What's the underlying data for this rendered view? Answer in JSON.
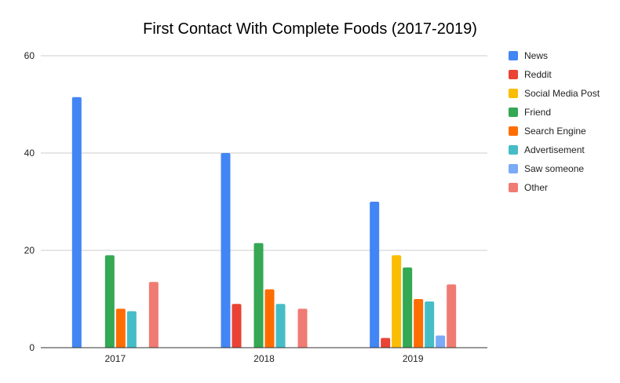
{
  "chart_data": {
    "type": "bar",
    "title": "First Contact With Complete Foods (2017-2019)",
    "xlabel": "",
    "ylabel": "",
    "categories": [
      "2017",
      "2018",
      "2019"
    ],
    "ylim": [
      0,
      60
    ],
    "yticks": [
      0,
      20,
      40,
      60
    ],
    "grid": true,
    "legend_position": "right",
    "series": [
      {
        "name": "News",
        "color": "#4285F4",
        "values": [
          51.5,
          40,
          30
        ]
      },
      {
        "name": "Reddit",
        "color": "#EA4335",
        "values": [
          0,
          9,
          2
        ]
      },
      {
        "name": "Social Media Post",
        "color": "#FBBC04",
        "values": [
          0,
          0,
          19
        ]
      },
      {
        "name": "Friend",
        "color": "#34A853",
        "values": [
          19,
          21.5,
          16.5
        ]
      },
      {
        "name": "Search Engine",
        "color": "#FF6D01",
        "values": [
          8,
          12,
          10
        ]
      },
      {
        "name": "Advertisement",
        "color": "#46BDC6",
        "values": [
          7.5,
          9,
          9.5
        ]
      },
      {
        "name": "Saw someone",
        "color": "#7BAAF7",
        "values": [
          0,
          0,
          2.5
        ]
      },
      {
        "name": "Other",
        "color": "#F07B72",
        "values": [
          13.5,
          8,
          13
        ]
      }
    ]
  }
}
